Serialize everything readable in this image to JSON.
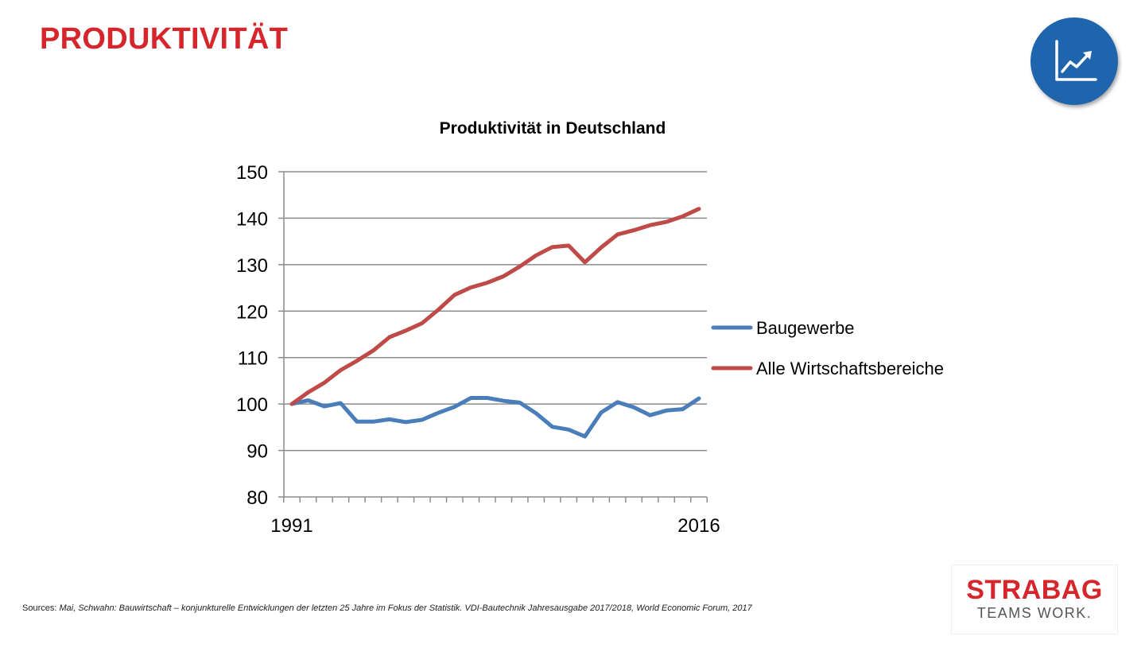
{
  "slide": {
    "title": "PRODUKTIVITÄT",
    "badge_icon": "line-chart-trend-icon",
    "colors": {
      "accent": "#d7262b",
      "badge": "#1e65ad"
    }
  },
  "chart_data": {
    "type": "line",
    "title": "Produktivität in Deutschland",
    "x": [
      1991,
      1992,
      1993,
      1994,
      1995,
      1996,
      1997,
      1998,
      1999,
      2000,
      2001,
      2002,
      2003,
      2004,
      2005,
      2006,
      2007,
      2008,
      2009,
      2010,
      2011,
      2012,
      2013,
      2014,
      2015,
      2016
    ],
    "x_tick_labels": [
      "1991",
      "2016"
    ],
    "ylim": [
      80,
      150
    ],
    "yticks": [
      80,
      90,
      100,
      110,
      120,
      130,
      140,
      150
    ],
    "grid": true,
    "legend_position": "right",
    "series": [
      {
        "name": "Baugewerbe",
        "color": "#4a7ebb",
        "values": [
          100,
          100.8,
          99.5,
          100.2,
          96.2,
          96.2,
          96.7,
          96.1,
          96.6,
          98.1,
          99.4,
          101.3,
          101.3,
          100.7,
          100.3,
          98.0,
          95.1,
          94.5,
          93.0,
          98.2,
          100.4,
          99.3,
          97.6,
          98.6,
          98.9,
          101.2
        ]
      },
      {
        "name": "Alle Wirtschaftsbereiche",
        "color": "#be4b48",
        "values": [
          100,
          102.5,
          104.6,
          107.3,
          109.3,
          111.5,
          114.4,
          115.8,
          117.4,
          120.3,
          123.5,
          125.1,
          126.1,
          127.5,
          129.6,
          132.0,
          133.8,
          134.1,
          130.5,
          133.7,
          136.5,
          137.4,
          138.5,
          139.2,
          140.4,
          142.0
        ]
      }
    ]
  },
  "footer": {
    "sources_prefix": "Sources:",
    "sources_text": "Mai, Schwahn: Bauwirtschaft – konjunkturelle Entwicklungen der letzten 25 Jahre im Fokus der Statistik. VDI-Bautechnik Jahresausgabe 2017/2018, World Economic Forum, 2017"
  },
  "logo": {
    "name": "STRABAG",
    "tagline": "TEAMS WORK."
  }
}
